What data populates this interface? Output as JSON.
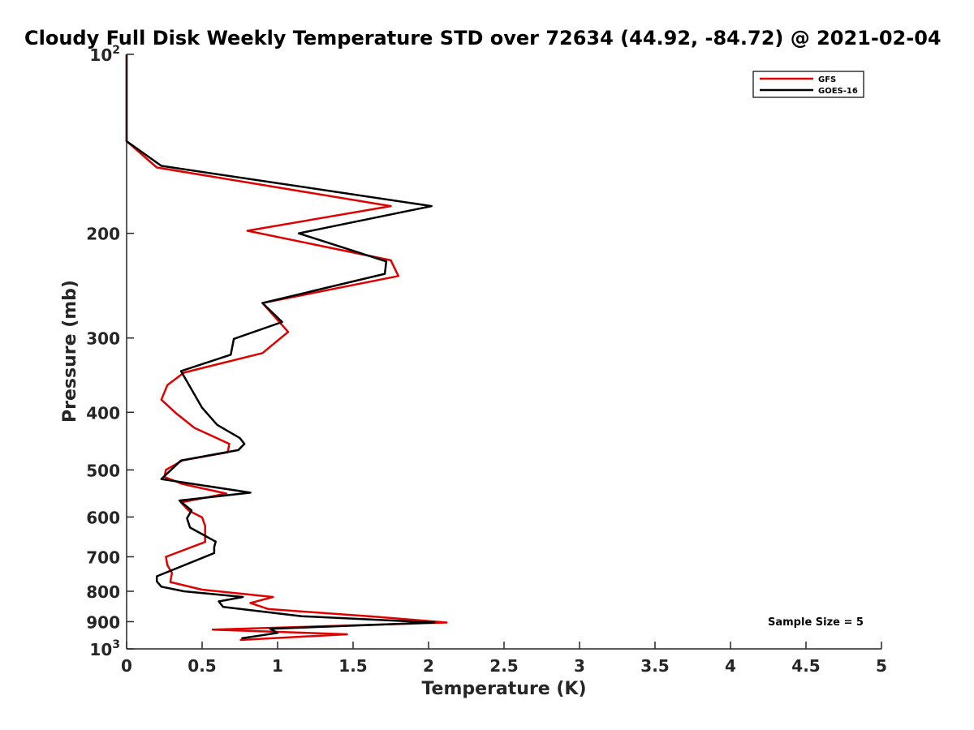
{
  "chart_data": {
    "type": "line",
    "title": "Cloudy Full Disk Weekly Temperature STD over 72634 (44.92, -84.72) @ 2021-02-04",
    "xlabel": "Temperature (K)",
    "ylabel": "Pressure (mb)",
    "xlim": [
      0,
      5
    ],
    "ylim": [
      100,
      1000
    ],
    "y_scale": "log",
    "y_reversed": true,
    "x_ticks": [
      "0",
      "0.5",
      "1",
      "1.5",
      "2",
      "2.5",
      "3",
      "3.5",
      "4",
      "4.5",
      "5"
    ],
    "y_ticks": [
      {
        "value": 100,
        "base": "10",
        "exp": "2"
      },
      {
        "value": 200,
        "label": "200"
      },
      {
        "value": 300,
        "label": "300"
      },
      {
        "value": 400,
        "label": "400"
      },
      {
        "value": 500,
        "label": "500"
      },
      {
        "value": 600,
        "label": "600"
      },
      {
        "value": 700,
        "label": "700"
      },
      {
        "value": 800,
        "label": "800"
      },
      {
        "value": 900,
        "label": "900"
      },
      {
        "value": 1000,
        "base": "10",
        "exp": "3"
      }
    ],
    "grid": false,
    "legend_position": "top-right",
    "annotation": "Sample Size = 5",
    "series": [
      {
        "name": "GFS",
        "color": "#e00000",
        "points": [
          [
            0,
            100
          ],
          [
            0,
            140
          ],
          [
            0.2,
            155
          ],
          [
            1.75,
            180
          ],
          [
            0.8,
            198
          ],
          [
            1.75,
            222
          ],
          [
            1.8,
            236
          ],
          [
            0.9,
            262
          ],
          [
            1.07,
            293
          ],
          [
            0.9,
            318
          ],
          [
            0.38,
            343
          ],
          [
            0.27,
            360
          ],
          [
            0.23,
            381
          ],
          [
            0.33,
            402
          ],
          [
            0.45,
            425
          ],
          [
            0.68,
            452
          ],
          [
            0.67,
            467
          ],
          [
            0.37,
            482
          ],
          [
            0.26,
            500
          ],
          [
            0.25,
            514
          ],
          [
            0.37,
            528
          ],
          [
            0.66,
            548
          ],
          [
            0.36,
            567
          ],
          [
            0.41,
            585
          ],
          [
            0.5,
            601
          ],
          [
            0.52,
            621
          ],
          [
            0.52,
            641
          ],
          [
            0.52,
            661
          ],
          [
            0.26,
            700
          ],
          [
            0.27,
            723
          ],
          [
            0.3,
            745
          ],
          [
            0.29,
            772
          ],
          [
            0.5,
            795
          ],
          [
            0.97,
            818
          ],
          [
            0.82,
            837
          ],
          [
            0.94,
            857
          ],
          [
            1.65,
            883
          ],
          [
            2.12,
            903
          ],
          [
            0.57,
            928
          ],
          [
            1.46,
            945
          ],
          [
            0.75,
            966
          ]
        ]
      },
      {
        "name": "GOES-16",
        "color": "#000000",
        "points": [
          [
            0,
            100
          ],
          [
            0,
            140
          ],
          [
            0.23,
            154
          ],
          [
            2.02,
            180
          ],
          [
            1.14,
            200
          ],
          [
            1.72,
            223
          ],
          [
            1.71,
            234
          ],
          [
            0.9,
            262
          ],
          [
            1.03,
            282
          ],
          [
            0.71,
            301
          ],
          [
            0.69,
            320
          ],
          [
            0.36,
            341
          ],
          [
            0.5,
            393
          ],
          [
            0.6,
            420
          ],
          [
            0.75,
            442
          ],
          [
            0.78,
            452
          ],
          [
            0.74,
            463
          ],
          [
            0.36,
            482
          ],
          [
            0.23,
            518
          ],
          [
            0.82,
            546
          ],
          [
            0.35,
            563
          ],
          [
            0.43,
            585
          ],
          [
            0.4,
            603
          ],
          [
            0.42,
            625
          ],
          [
            0.59,
            660
          ],
          [
            0.58,
            674
          ],
          [
            0.58,
            690
          ],
          [
            0.2,
            755
          ],
          [
            0.2,
            770
          ],
          [
            0.23,
            786
          ],
          [
            0.38,
            800
          ],
          [
            0.77,
            818
          ],
          [
            0.61,
            832
          ],
          [
            0.64,
            850
          ],
          [
            1.16,
            881
          ],
          [
            2.04,
            903
          ],
          [
            0.95,
            925
          ],
          [
            1.0,
            940
          ],
          [
            0.76,
            960
          ]
        ]
      }
    ]
  }
}
